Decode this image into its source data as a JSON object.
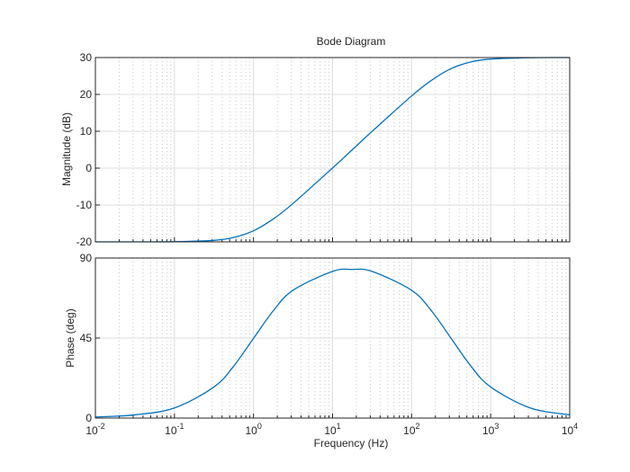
{
  "chart_data": [
    {
      "type": "line",
      "title": "Bode Diagram",
      "xlabel": "Frequency  (Hz)",
      "ylabel": "Magnitude (dB)",
      "xscale": "log",
      "xlim": [
        0.01,
        10000
      ],
      "ylim": [
        -20,
        30
      ],
      "yticks": [
        "30",
        "20",
        "10",
        "0",
        "-10",
        "-20"
      ],
      "grid": true,
      "color": "#0072BD",
      "x": [
        0.01,
        0.0316,
        0.1,
        0.316,
        0.562,
        1,
        1.78,
        3.16,
        10,
        17.8,
        31.6,
        100,
        178,
        316,
        562,
        1000,
        3162,
        10000
      ],
      "y": [
        -20.0,
        -20.0,
        -19.96,
        -19.59,
        -18.81,
        -16.99,
        -13.8,
        -9.59,
        0.04,
        5.0,
        9.96,
        19.59,
        23.8,
        26.99,
        28.81,
        29.59,
        29.96,
        30.0
      ]
    },
    {
      "type": "line",
      "xlabel": "Frequency  (Hz)",
      "ylabel": "Phase (deg)",
      "xscale": "log",
      "xlim": [
        0.01,
        10000
      ],
      "ylim": [
        0,
        90
      ],
      "yticks": [
        "90",
        "45",
        "0"
      ],
      "xticks": [
        {
          "base": "10",
          "exp": "-2"
        },
        {
          "base": "10",
          "exp": "-1"
        },
        {
          "base": "10",
          "exp": "0"
        },
        {
          "base": "10",
          "exp": "1"
        },
        {
          "base": "10",
          "exp": "2"
        },
        {
          "base": "10",
          "exp": "3"
        },
        {
          "base": "10",
          "exp": "4"
        }
      ],
      "grid": true,
      "color": "#0072BD",
      "x": [
        0.01,
        0.0316,
        0.1,
        0.316,
        0.562,
        1,
        1.78,
        3.16,
        10,
        17.8,
        31.6,
        100,
        178,
        316,
        562,
        1000,
        3162,
        10000
      ],
      "y": [
        0.57,
        1.81,
        5.69,
        17.49,
        29.24,
        44.82,
        60.35,
        71.88,
        82.48,
        83.56,
        82.48,
        71.88,
        60.35,
        44.82,
        29.24,
        17.49,
        5.69,
        1.81
      ]
    }
  ]
}
